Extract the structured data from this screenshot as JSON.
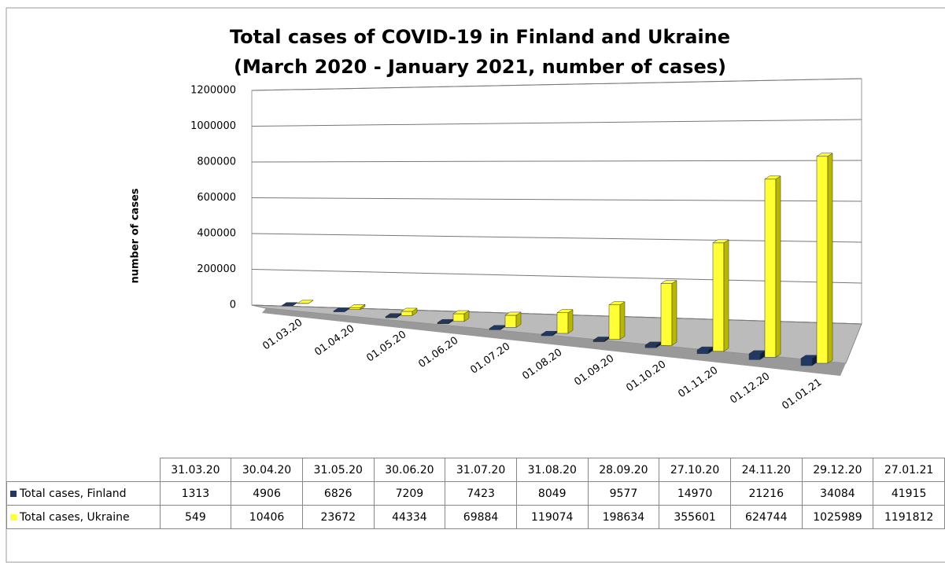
{
  "chart_data": {
    "type": "bar",
    "title": "Total cases of COVID-19 in Finland and Ukraine",
    "subtitle": "(March 2020 - January 2021, number of cases)",
    "y_label": "number of cases",
    "categories": [
      "01.03.20",
      "01.04.20",
      "01.05.20",
      "01.06.20",
      "01.07.20",
      "01.08.20",
      "01.09.20",
      "01.10.20",
      "01.11.20",
      "01.12.20",
      "01.01.21"
    ],
    "table_columns": [
      "31.03.20",
      "30.04.20",
      "31.05.20",
      "30.06.20",
      "31.07.20",
      "31.08.20",
      "28.09.20",
      "27.10.20",
      "24.11.20",
      "29.12.20",
      "27.01.21"
    ],
    "series": [
      {
        "name": "Total cases, Finland",
        "color": "#1f3864",
        "values": [
          1313,
          4906,
          6826,
          7209,
          7423,
          8049,
          9577,
          14970,
          21216,
          34084,
          41915
        ]
      },
      {
        "name": "Total cases, Ukraine",
        "color": "#ffff33",
        "values": [
          549,
          10406,
          23672,
          44334,
          69884,
          119074,
          198634,
          355601,
          624744,
          1025989,
          1191812
        ]
      }
    ],
    "ylim": [
      0,
      1200000
    ],
    "yticks": [
      0,
      200000,
      400000,
      600000,
      800000,
      1000000,
      1200000
    ],
    "grid": true
  }
}
